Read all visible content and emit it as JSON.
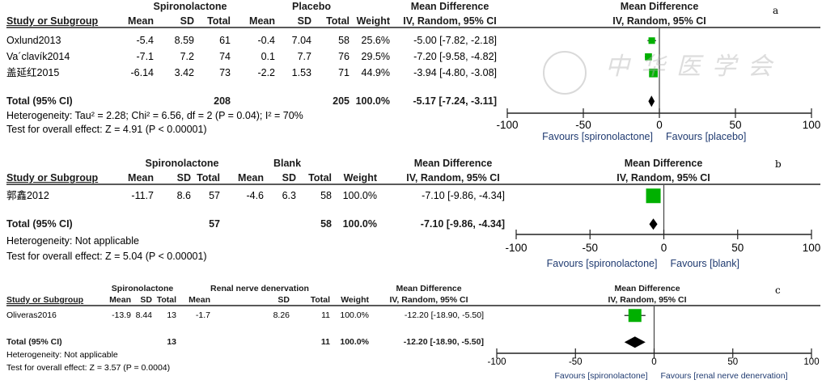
{
  "chart_data": [
    {
      "type": "forest",
      "panel_label": "a",
      "header": {
        "group1": "Spironolactone",
        "group2": "Placebo",
        "md_title": "Mean Difference",
        "md_sub": "IV, Random, 95% CI",
        "study": "Study or Subgroup",
        "mean": "Mean",
        "sd": "SD",
        "total": "Total",
        "weight": "Weight"
      },
      "studies": [
        {
          "name": "Oxlund2013",
          "m1": "-5.4",
          "sd1": "8.59",
          "n1": "61",
          "m2": "-0.4",
          "sd2": "7.04",
          "n2": "58",
          "weight": "25.6%",
          "md_text": "-5.00 [-7.82, -2.18]",
          "md": -5.0,
          "lo": -7.82,
          "hi": -2.18,
          "w": 25.6
        },
        {
          "name": "Va´clavík2014",
          "m1": "-7.1",
          "sd1": "7.2",
          "n1": "74",
          "m2": "0.1",
          "sd2": "7.7",
          "n2": "76",
          "weight": "29.5%",
          "md_text": "-7.20 [-9.58, -4.82]",
          "md": -7.2,
          "lo": -9.58,
          "hi": -4.82,
          "w": 29.5
        },
        {
          "name": "盖延红2015",
          "m1": "-6.14",
          "sd1": "3.42",
          "n1": "73",
          "m2": "-2.2",
          "sd2": "1.53",
          "n2": "71",
          "weight": "44.9%",
          "md_text": "-3.94 [-4.80, -3.08]",
          "md": -3.94,
          "lo": -4.8,
          "hi": -3.08,
          "w": 44.9
        }
      ],
      "total": {
        "label": "Total (95% CI)",
        "n1": "208",
        "n2": "205",
        "weight": "100.0%",
        "md_text": "-5.17 [-7.24, -3.11]",
        "md": -5.17,
        "lo": -7.24,
        "hi": -3.11
      },
      "heterogeneity": "Heterogeneity: Tau² = 2.28; Chi² = 6.56, df = 2 (P = 0.04); I² = 70%",
      "overall": "Test for overall effect: Z = 4.91 (P < 0.00001)",
      "axis": {
        "xlim": [
          -100,
          100
        ],
        "ticks": [
          "-100",
          "-50",
          "0",
          "50",
          "100"
        ],
        "tick_values": [
          -100,
          -50,
          0,
          50,
          100
        ],
        "favours_left": "Favours [spironolactone]",
        "favours_right": "Favours [placebo]"
      },
      "marker_color": "#00b000",
      "watermark": "中华医学会"
    },
    {
      "type": "forest",
      "panel_label": "b",
      "header": {
        "group1": "Spironolactone",
        "group2": "Blank",
        "md_title": "Mean Difference",
        "md_sub": "IV, Random, 95% CI",
        "study": "Study or Subgroup",
        "mean": "Mean",
        "sd": "SD",
        "total": "Total",
        "weight": "Weight"
      },
      "studies": [
        {
          "name": "郭鑫2012",
          "m1": "-11.7",
          "sd1": "8.6",
          "n1": "57",
          "m2": "-4.6",
          "sd2": "6.3",
          "n2": "58",
          "weight": "100.0%",
          "md_text": "-7.10 [-9.86, -4.34]",
          "md": -7.1,
          "lo": -9.86,
          "hi": -4.34,
          "w": 100
        }
      ],
      "total": {
        "label": "Total (95% CI)",
        "n1": "57",
        "n2": "58",
        "weight": "100.0%",
        "md_text": "-7.10 [-9.86, -4.34]",
        "md": -7.1,
        "lo": -9.86,
        "hi": -4.34
      },
      "heterogeneity": "Heterogeneity: Not applicable",
      "overall": "Test for overall effect: Z = 5.04 (P < 0.00001)",
      "axis": {
        "xlim": [
          -100,
          100
        ],
        "ticks": [
          "-100",
          "-50",
          "0",
          "50",
          "100"
        ],
        "tick_values": [
          -100,
          -50,
          0,
          50,
          100
        ],
        "favours_left": "Favours [spironolactone]",
        "favours_right": "Favours [blank]"
      },
      "marker_color": "#00b000"
    },
    {
      "type": "forest",
      "panel_label": "c",
      "header": {
        "group1": "Spironolactone",
        "group2": "Renal nerve denervation",
        "md_title": "Mean Difference",
        "md_sub": "IV, Random, 95% CI",
        "study": "Study or Subgroup",
        "mean": "Mean",
        "sd": "SD",
        "total": "Total",
        "weight": "Weight"
      },
      "studies": [
        {
          "name": "Oliveras2016",
          "m1": "-13.9",
          "sd1": "8.44",
          "n1": "13",
          "m2": "-1.7",
          "sd2": "8.26",
          "n2": "11",
          "weight": "100.0%",
          "md_text": "-12.20 [-18.90, -5.50]",
          "md": -12.2,
          "lo": -18.9,
          "hi": -5.5,
          "w": 100
        }
      ],
      "total": {
        "label": "Total (95% CI)",
        "n1": "13",
        "n2": "11",
        "weight": "100.0%",
        "md_text": "-12.20 [-18.90, -5.50]",
        "md": -12.2,
        "lo": -18.9,
        "hi": -5.5
      },
      "heterogeneity": "Heterogeneity: Not applicable",
      "overall": "Test for overall effect: Z = 3.57 (P = 0.0004)",
      "axis": {
        "xlim": [
          -100,
          100
        ],
        "ticks": [
          "-100",
          "-50",
          "0",
          "50",
          "100"
        ],
        "tick_values": [
          -100,
          -50,
          0,
          50,
          100
        ],
        "favours_left": "Favours [spironolactone]",
        "favours_right": "Favours [renal nerve denervation]"
      },
      "marker_color": "#00b000"
    }
  ]
}
